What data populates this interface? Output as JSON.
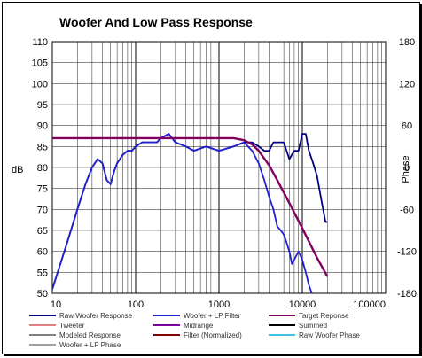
{
  "chart_data": {
    "type": "line",
    "title": "Woofer  And Low Pass Response",
    "xlabel": "",
    "ylabel": "dB",
    "y2label": "Phase",
    "xscale": "log",
    "xlim": [
      10,
      100000
    ],
    "ylim": [
      50,
      110
    ],
    "y2lim": [
      -180,
      180
    ],
    "x_ticks": [
      "10",
      "100",
      "1000",
      "10000",
      "100000"
    ],
    "y_ticks": [
      "50",
      "55",
      "60",
      "65",
      "70",
      "75",
      "80",
      "85",
      "90",
      "95",
      "100",
      "105",
      "110"
    ],
    "y2_ticks": [
      "-180",
      "-120",
      "-60",
      "0",
      "60",
      "120",
      "180"
    ],
    "grid": true,
    "legend_position": "bottom",
    "legend": [
      {
        "name": "Raw Woofer Response",
        "color": "#000080"
      },
      {
        "name": "Woofer + LP Filter",
        "color": "#2020d0"
      },
      {
        "name": "Target Reponse",
        "color": "#800060"
      },
      {
        "name": "Tweeter",
        "color": "#e08080"
      },
      {
        "name": "Midrange",
        "color": "#8000a0"
      },
      {
        "name": "Summed",
        "color": "#000000"
      },
      {
        "name": "Modeled Response",
        "color": "#808080"
      },
      {
        "name": "Filter (Normalized)",
        "color": "#800000"
      },
      {
        "name": "Raw Woofer Phase",
        "color": "#40c0e0"
      },
      {
        "name": "Woofer + LP  Phase",
        "color": "#a0a0a0"
      }
    ],
    "series": [
      {
        "name": "Raw Woofer Response",
        "color": "#000080",
        "x": [
          10,
          15,
          20,
          25,
          30,
          35,
          40,
          45,
          50,
          55,
          60,
          70,
          80,
          90,
          100,
          120,
          150,
          180,
          200,
          250,
          300,
          400,
          500,
          700,
          1000,
          1500,
          2000,
          2500,
          3000,
          3500,
          4000,
          4500,
          5000,
          6000,
          7000,
          8000,
          9000,
          10000,
          11000,
          12000,
          13000,
          14000,
          15000,
          17000,
          19000,
          20000
        ],
        "y": [
          51,
          62,
          70,
          76,
          80,
          82,
          81,
          77,
          76,
          79,
          81,
          83,
          84,
          84,
          85,
          86,
          86,
          86,
          87,
          88,
          86,
          85,
          84,
          85,
          84,
          85,
          86,
          86,
          85,
          84,
          84,
          86,
          86,
          86,
          82,
          84,
          84,
          88,
          88,
          84,
          82,
          80,
          78,
          72,
          67,
          67
        ]
      },
      {
        "name": "Woofer + LP Filter",
        "color": "#2020d0",
        "x": [
          10,
          15,
          20,
          25,
          30,
          35,
          40,
          45,
          50,
          55,
          60,
          70,
          80,
          90,
          100,
          120,
          150,
          180,
          200,
          250,
          300,
          400,
          500,
          700,
          1000,
          1500,
          2000,
          2500,
          3000,
          3500,
          4000,
          4500,
          5000,
          5500,
          6000,
          6500,
          7000,
          7500,
          8000,
          9000,
          10000,
          11000,
          12000,
          13000
        ],
        "y": [
          51,
          62,
          70,
          76,
          80,
          82,
          81,
          77,
          76,
          79,
          81,
          83,
          84,
          84,
          85,
          86,
          86,
          86,
          87,
          88,
          86,
          85,
          84,
          85,
          84,
          85,
          86,
          84,
          81,
          77,
          73,
          70,
          66,
          65,
          64,
          62,
          60,
          57,
          58,
          60,
          58,
          55,
          52,
          50
        ]
      },
      {
        "name": "Target Reponse",
        "color": "#800060",
        "x": [
          10,
          100,
          1000,
          1500,
          2000,
          2500,
          3000,
          4000,
          5000,
          7000,
          10000,
          15000,
          20000
        ],
        "y": [
          87,
          87,
          87,
          87,
          86.5,
          85.5,
          84,
          80.5,
          77,
          71.5,
          65.5,
          58.5,
          54
        ]
      }
    ]
  }
}
